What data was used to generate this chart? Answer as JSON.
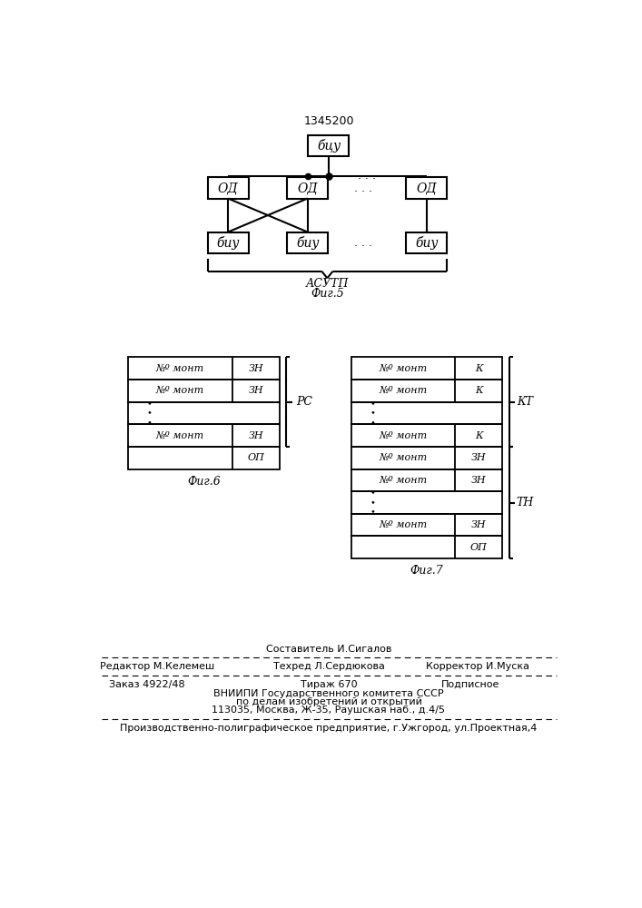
{
  "title": "1345200",
  "fig5_label": "Фиг.5",
  "fig6_label": "Фиг.6",
  "fig7_label": "Фиг.7",
  "asurp_label": "АСУТП",
  "bcu_label": "бцу",
  "od_label": "ОД",
  "biu_label": "биу",
  "pc_label": "PC",
  "kt_label": "КТ",
  "tn_label": "ТН",
  "no_kont_label": "№º монт",
  "zn_label": "ЗН",
  "k_label": "К",
  "op_label": "ОП",
  "composer_line": "Составитель И.Сигалов",
  "editor_line": "Редактор М.Келемеш",
  "techred_line": "Техред Л.Сердюкова",
  "corrector_line": "Корректор И.Муска",
  "order_line": "Заказ 4922/48",
  "tirazh_line": "Тираж 670",
  "podpisnoe_line": "Подписное",
  "vniip_line": "ВНИИПИ Государственного комитета СССР",
  "po_delam_line": "по делам изобретений и открытий",
  "address_line": "113035, Москва, Ж-35, Раушская наб., д.4/5",
  "production_line": "Производственно-полиграфическое предприятие, г.Ужгород, ул.Проектная,4"
}
